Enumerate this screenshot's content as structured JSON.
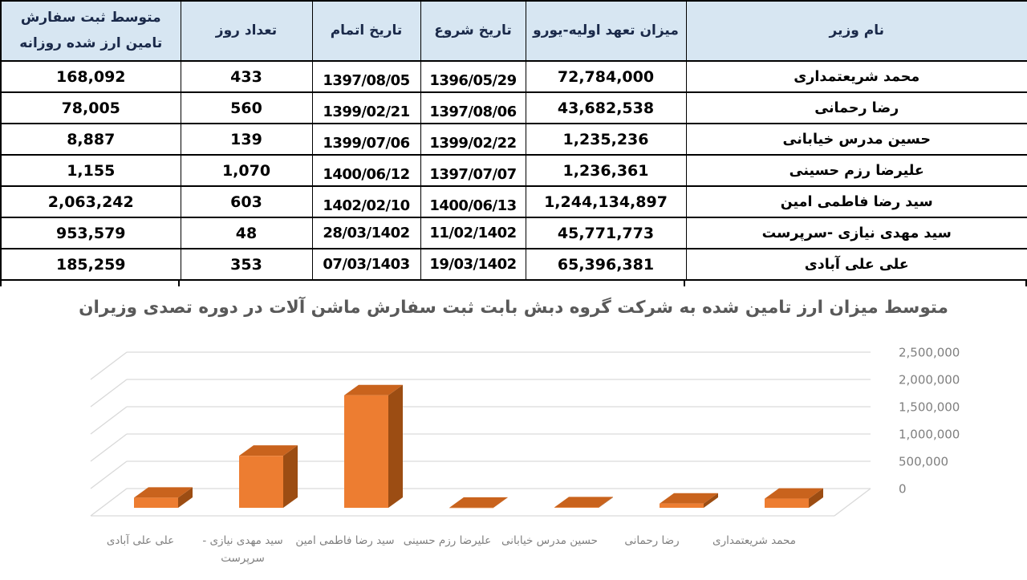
{
  "table": {
    "headers": {
      "name": "نام وزیر",
      "commitment": "میزان تعهد اولیه-یورو",
      "start": "تاریخ شروع",
      "end": "تاریخ اتمام",
      "days": "تعداد روز",
      "avg": "متوسط ثبت سفارش تامین ارز شده روزانه"
    },
    "rows": [
      {
        "name": "محمد شریعتمداری",
        "commitment": "72,784,000",
        "start": "1396/05/29",
        "end": "1397/08/05",
        "days": "433",
        "avg": "168,092"
      },
      {
        "name": "رضا رحمانی",
        "commitment": "43,682,538",
        "start": "1397/08/06",
        "end": "1399/02/21",
        "days": "560",
        "avg": "78,005"
      },
      {
        "name": "حسین مدرس خیابانی",
        "commitment": "1,235,236",
        "start": "1399/02/22",
        "end": "1399/07/06",
        "days": "139",
        "avg": "8,887"
      },
      {
        "name": "علیرضا رزم حسینی",
        "commitment": "1,236,361",
        "start": "1397/07/07",
        "end": "1400/06/12",
        "days": "1,070",
        "avg": "1,155"
      },
      {
        "name": "سید رضا فاطمی امین",
        "commitment": "1,244,134,897",
        "start": "1400/06/13",
        "end": "1402/02/10",
        "days": "603",
        "avg": "2,063,242"
      },
      {
        "name": "سید مهدی نیازی -سرپرست",
        "commitment": "45,771,773",
        "start": "11/02/1402",
        "end": "28/03/1402",
        "days": "48",
        "avg": "953,579"
      },
      {
        "name": "علی علی آبادی",
        "commitment": "65,396,381",
        "start": "19/03/1402",
        "end": "07/03/1403",
        "days": "353",
        "avg": "185,259"
      }
    ]
  },
  "chart_data": {
    "type": "bar",
    "variant": "3d-column",
    "title": "متوسط میزان  ارز تامین شده به شرکت گروه دبش  بابت ثبت سفارش ماشن آلات در دوره تصدی وزیران",
    "categories": [
      "علی علی آبادی",
      "سید مهدی نیازی -\nسرپرست",
      "سید رضا فاطمی امین",
      "علیرضا رزم حسینی",
      "حسین مدرس خیابانی",
      "رضا رحمانی",
      "محمد شریعتمداری"
    ],
    "values": [
      185259,
      953579,
      2063242,
      1155,
      8887,
      78005,
      168092
    ],
    "xlabel": "",
    "ylabel": "",
    "ylim": [
      0,
      2500000
    ],
    "y_ticks": [
      0,
      500000,
      1000000,
      1500000,
      2000000,
      2500000
    ],
    "y_tick_labels": [
      "0",
      "500,000",
      "1,000,000",
      "1,500,000",
      "2,000,000",
      "2,500,000"
    ],
    "grid": true,
    "legend": "none",
    "value_axis_side": "right",
    "colors": {
      "bar_front": "#ED7D31",
      "bar_top": "#C9631D",
      "bar_side": "#9C4D13",
      "gridline": "#D9D9D9",
      "axis_label": "#7F7F7F",
      "title": "#595959",
      "header_bg": "#D7E6F2"
    }
  }
}
